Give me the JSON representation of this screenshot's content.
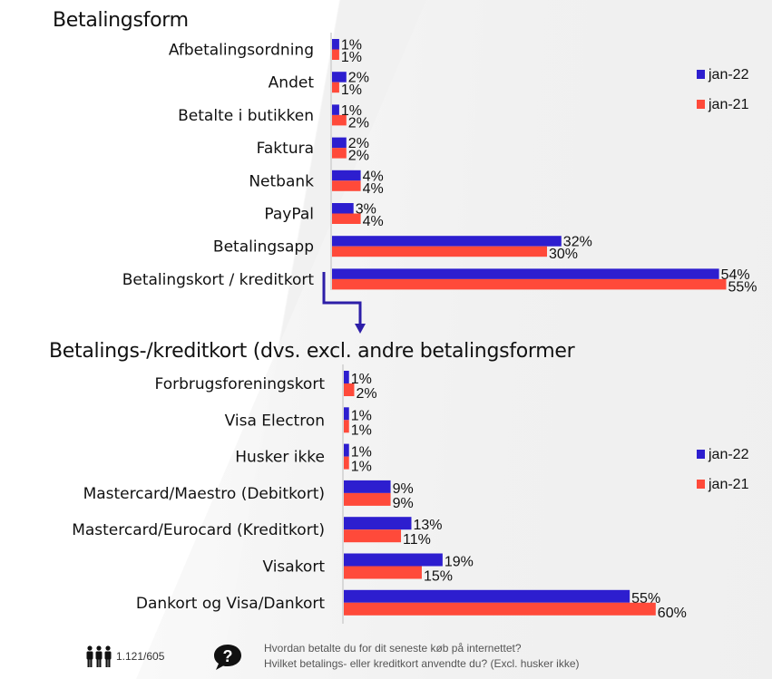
{
  "colors": {
    "jan22": "#2d1ecf",
    "jan21": "#ff4a3a",
    "axis": "#cfcfcf",
    "arrow": "#2d1ea8"
  },
  "chart_data": [
    {
      "type": "bar",
      "orientation": "horizontal",
      "title": "Betalingsform",
      "categories": [
        "Afbetalingsordning",
        "Andet",
        "Betalte i butikken",
        "Faktura",
        "Netbank",
        "PayPal",
        "Betalingsapp",
        "Betalingskort / kreditkort"
      ],
      "series": [
        {
          "name": "jan-22",
          "values": [
            1,
            2,
            1,
            2,
            4,
            3,
            32,
            54
          ],
          "labels": [
            "1%",
            "2%",
            "1%",
            "2%",
            "4%",
            "3%",
            "32%",
            "54%"
          ]
        },
        {
          "name": "jan-21",
          "values": [
            1,
            1,
            2,
            2,
            4,
            4,
            30,
            55
          ],
          "labels": [
            "1%",
            "1%",
            "2%",
            "2%",
            "4%",
            "4%",
            "30%",
            "55%"
          ]
        }
      ],
      "unit": "%",
      "legend": [
        "jan-22",
        "jan-21"
      ],
      "legend_position": "right",
      "grid": false
    },
    {
      "type": "bar",
      "orientation": "horizontal",
      "title": "Betalings-/kreditkort (dvs. excl. andre betalingsformer",
      "categories": [
        "Forbrugsforeningskort",
        "Visa Electron",
        "Husker ikke",
        "Mastercard/Maestro (Debitkort)",
        "Mastercard/Eurocard (Kreditkort)",
        "Visakort",
        "Dankort og Visa/Dankort"
      ],
      "series": [
        {
          "name": "jan-22",
          "values": [
            1,
            1,
            1,
            9,
            13,
            19,
            55
          ],
          "labels": [
            "1%",
            "1%",
            "1%",
            "9%",
            "13%",
            "19%",
            "55%"
          ]
        },
        {
          "name": "jan-21",
          "values": [
            2,
            1,
            1,
            9,
            11,
            15,
            60
          ],
          "labels": [
            "2%",
            "1%",
            "1%",
            "9%",
            "11%",
            "15%",
            "60%"
          ]
        }
      ],
      "unit": "%",
      "legend": [
        "jan-22",
        "jan-21"
      ],
      "legend_position": "right",
      "grid": false
    }
  ],
  "footer": {
    "sample_size": "1.121/605",
    "question_1": "Hvordan betalte du for dit seneste køb på internettet?",
    "question_2": "Hvilket betalings- eller kreditkort anvendte du? (Excl. husker ikke)",
    "icons": [
      "people-icon",
      "question-bubble-icon"
    ]
  }
}
